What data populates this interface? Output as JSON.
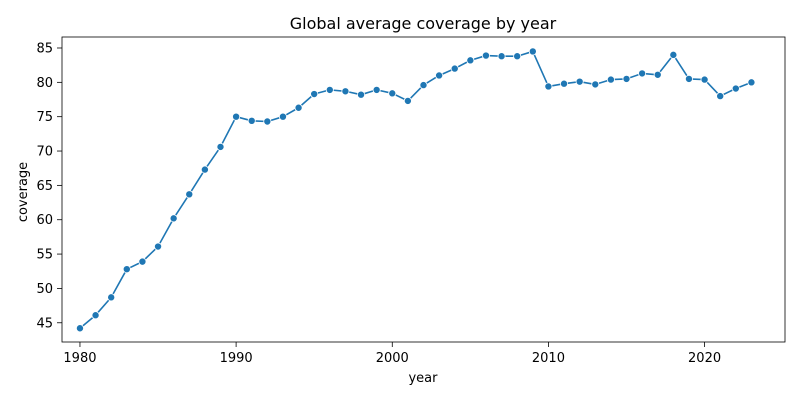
{
  "chart_data": {
    "type": "line",
    "title": "Global average coverage by year",
    "xlabel": "year",
    "ylabel": "coverage",
    "xlim": [
      1978.85,
      2025.15
    ],
    "ylim": [
      42.2,
      86.6
    ],
    "xticks": [
      1980,
      1990,
      2000,
      2010,
      2020
    ],
    "yticks": [
      45,
      50,
      55,
      60,
      65,
      70,
      75,
      80,
      85
    ],
    "grid": false,
    "legend": "none",
    "line_color": "#1f77b4",
    "marker": "circle",
    "series": [
      {
        "x": [
          1980,
          1981,
          1982,
          1983,
          1984,
          1985,
          1986,
          1987,
          1988,
          1989,
          1990,
          1991,
          1992,
          1993,
          1994,
          1995,
          1996,
          1997,
          1998,
          1999,
          2000,
          2001,
          2002,
          2003,
          2004,
          2005,
          2006,
          2007,
          2008,
          2009,
          2010,
          2011,
          2012,
          2013,
          2014,
          2015,
          2016,
          2017,
          2018,
          2019,
          2020,
          2021,
          2022,
          2023
        ],
        "y": [
          44.2,
          46.1,
          48.7,
          52.8,
          53.9,
          56.1,
          60.2,
          63.7,
          67.3,
          70.6,
          75.0,
          74.4,
          74.3,
          75.0,
          76.3,
          78.3,
          78.9,
          78.7,
          78.2,
          78.9,
          78.4,
          77.3,
          79.6,
          81.0,
          82.0,
          83.2,
          83.9,
          83.8,
          83.8,
          84.5,
          79.4,
          79.8,
          80.1,
          79.7,
          80.4,
          80.5,
          81.3,
          81.1,
          84.0,
          80.5,
          80.4,
          78.0,
          79.1,
          80.0
        ]
      }
    ]
  }
}
